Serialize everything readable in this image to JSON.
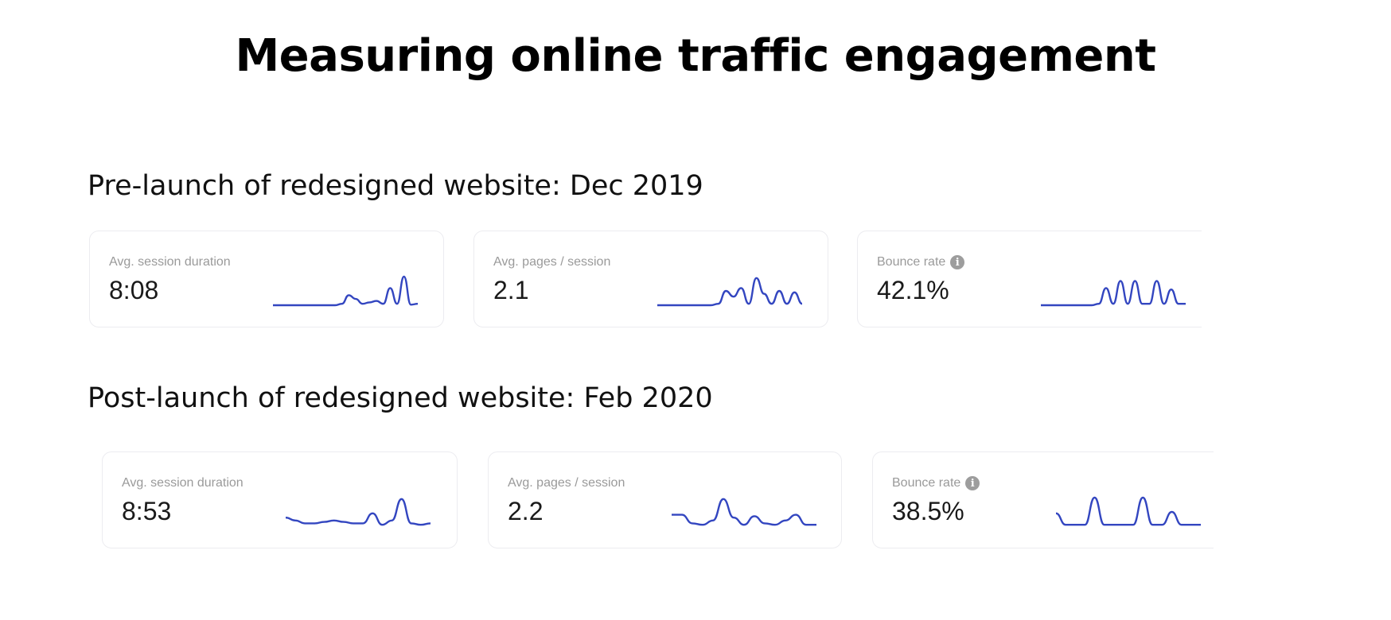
{
  "title": "Measuring online traffic engagement",
  "chart_data": [
    {
      "type": "line",
      "section": "Pre-launch of redesigned website: Dec 2019",
      "cards": [
        {
          "label": "Avg. session duration",
          "value": "8:08",
          "info": false,
          "series": [
            0,
            0,
            0,
            0,
            0,
            0,
            0,
            0,
            0,
            0,
            0.05,
            0.35,
            0.22,
            0.05,
            0.1,
            0.15,
            0.05,
            0.6,
            0.05,
            1.0,
            0.02,
            0.05
          ]
        },
        {
          "label": "Avg. pages / session",
          "value": "2.1",
          "info": false,
          "series": [
            0,
            0,
            0,
            0,
            0,
            0,
            0,
            0,
            0.05,
            0.5,
            0.3,
            0.6,
            0.05,
            0.95,
            0.4,
            0.05,
            0.5,
            0.05,
            0.45,
            0.05
          ]
        },
        {
          "label": "Bounce rate",
          "value": "42.1%",
          "info": true,
          "series": [
            0,
            0,
            0,
            0,
            0,
            0,
            0,
            0,
            0.05,
            0.6,
            0.05,
            0.85,
            0.05,
            0.85,
            0.05,
            0.05,
            0.85,
            0.05,
            0.55,
            0.05,
            0.05
          ]
        }
      ]
    },
    {
      "type": "line",
      "section": "Post-launch of redesigned website: Feb 2020",
      "cards": [
        {
          "label": "Avg. session duration",
          "value": "8:53",
          "info": false,
          "series": [
            0.3,
            0.2,
            0.1,
            0.1,
            0.15,
            0.2,
            0.15,
            0.1,
            0.1,
            0.45,
            0.05,
            0.2,
            0.95,
            0.1,
            0.05,
            0.1
          ]
        },
        {
          "label": "Avg. pages / session",
          "value": "2.2",
          "info": false,
          "series": [
            0.4,
            0.4,
            0.1,
            0.05,
            0.2,
            0.95,
            0.3,
            0.05,
            0.35,
            0.1,
            0.05,
            0.2,
            0.4,
            0.05,
            0.05
          ]
        },
        {
          "label": "Bounce rate",
          "value": "38.5%",
          "info": true,
          "series": [
            0.45,
            0.05,
            0.05,
            0.05,
            1.0,
            0.05,
            0.05,
            0.05,
            0.05,
            1.0,
            0.05,
            0.05,
            0.5,
            0.05,
            0.05,
            0.05
          ]
        }
      ]
    }
  ],
  "colors": {
    "line": "#3346c0"
  }
}
